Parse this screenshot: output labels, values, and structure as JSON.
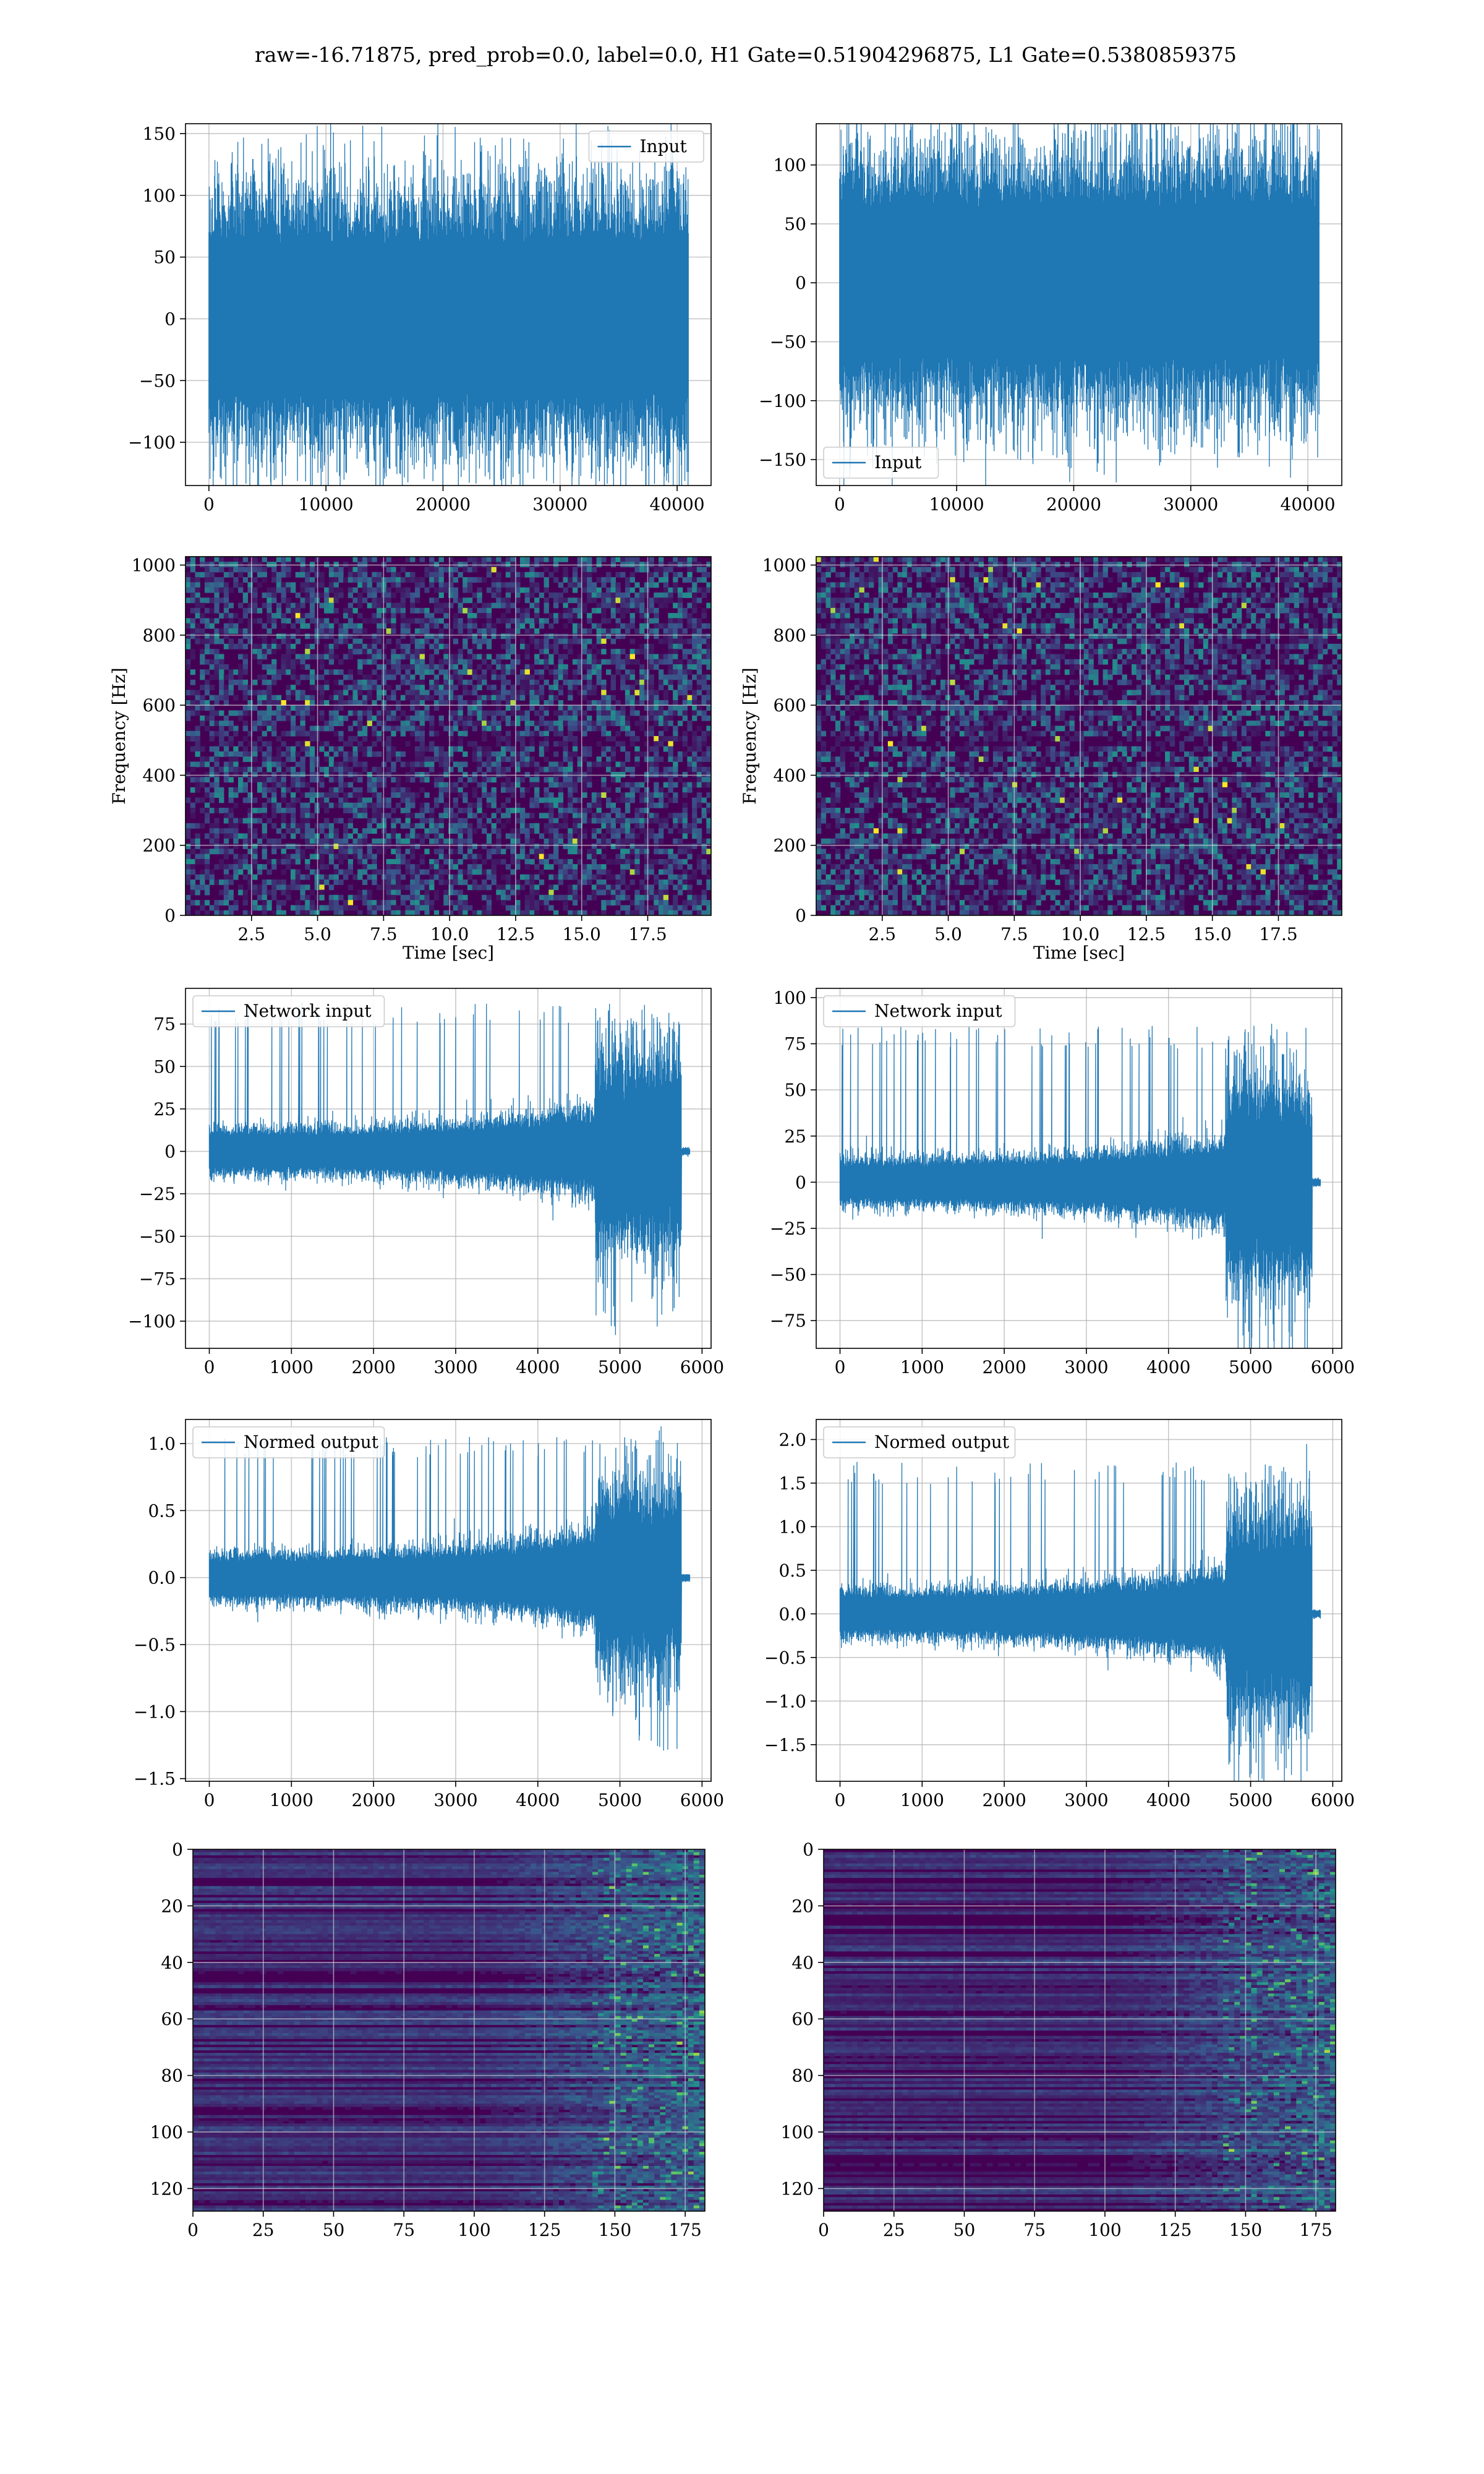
{
  "figure": {
    "suptitle": "raw=-16.71875, pred_prob=0.0, label=0.0, H1 Gate=0.51904296875, L1 Gate=0.5380859375"
  },
  "colors": {
    "line": "#1f77b4",
    "grid": "#b0b0b0",
    "viridis_low": "#440154",
    "viridis_high": "#fde725"
  },
  "chart_data": [
    {
      "id": "h1-input",
      "type": "line",
      "legend": "Input",
      "legend_loc": "upper-right",
      "xlim": [
        -2000,
        42900
      ],
      "ylim": [
        -135,
        158
      ],
      "xticks": [
        0,
        10000,
        20000,
        30000,
        40000
      ],
      "yticks": [
        -100,
        -50,
        0,
        50,
        100,
        150
      ],
      "series": [
        {
          "name": "Input",
          "x_range": [
            0,
            40960
          ],
          "points": 40960,
          "envelope": [
            -125,
            148
          ],
          "shape": "stationary"
        }
      ]
    },
    {
      "id": "l1-input",
      "type": "line",
      "legend": "Input",
      "legend_loc": "lower-left",
      "xlim": [
        -2000,
        42900
      ],
      "ylim": [
        -172,
        135
      ],
      "xticks": [
        0,
        10000,
        20000,
        30000,
        40000
      ],
      "yticks": [
        -150,
        -100,
        -50,
        0,
        50,
        100
      ],
      "series": [
        {
          "name": "Input",
          "x_range": [
            0,
            40960
          ],
          "points": 40960,
          "envelope": [
            -158,
            127
          ],
          "shape": "stationary"
        }
      ]
    },
    {
      "id": "h1-spectrogram",
      "type": "heatmap",
      "xlabel": "Time [sec]",
      "ylabel": "Frequency [Hz]",
      "xlim": [
        0,
        19.9
      ],
      "ylim": [
        0,
        1024
      ],
      "xticks": [
        2.5,
        5.0,
        7.5,
        10.0,
        12.5,
        15.0,
        17.5
      ],
      "xticklabels": [
        "2.5",
        "5.0",
        "7.5",
        "10.0",
        "12.5",
        "15.0",
        "17.5"
      ],
      "yticks": [
        0,
        200,
        400,
        600,
        800,
        1000
      ],
      "colormap": "viridis"
    },
    {
      "id": "l1-spectrogram",
      "type": "heatmap",
      "xlabel": "Time [sec]",
      "ylabel": "Frequency [Hz]",
      "xlim": [
        0,
        19.9
      ],
      "ylim": [
        0,
        1024
      ],
      "xticks": [
        2.5,
        5.0,
        7.5,
        10.0,
        12.5,
        15.0,
        17.5
      ],
      "xticklabels": [
        "2.5",
        "5.0",
        "7.5",
        "10.0",
        "12.5",
        "15.0",
        "17.5"
      ],
      "yticks": [
        0,
        200,
        400,
        600,
        800,
        1000
      ],
      "colormap": "viridis"
    },
    {
      "id": "h1-network-input",
      "type": "line",
      "legend": "Network input",
      "legend_loc": "upper-left",
      "xlim": [
        -290,
        6110
      ],
      "ylim": [
        -116,
        96
      ],
      "xticks": [
        0,
        1000,
        2000,
        3000,
        4000,
        5000,
        6000
      ],
      "yticks": [
        -100,
        -75,
        -50,
        -25,
        0,
        25,
        50,
        75
      ],
      "series": [
        {
          "name": "Network input",
          "x_range": [
            0,
            5850
          ],
          "points": 5850,
          "base_amplitude": 15,
          "burst_start": 4700,
          "burst_end": 5750,
          "burst_amplitude": 88,
          "shape": "chirp"
        }
      ]
    },
    {
      "id": "l1-network-input",
      "type": "line",
      "legend": "Network input",
      "legend_loc": "upper-left",
      "xlim": [
        -290,
        6110
      ],
      "ylim": [
        -90,
        105
      ],
      "xticks": [
        0,
        1000,
        2000,
        3000,
        4000,
        5000,
        6000
      ],
      "yticks": [
        -75,
        -50,
        -25,
        0,
        25,
        50,
        75,
        100
      ],
      "series": [
        {
          "name": "Network input",
          "x_range": [
            0,
            5850
          ],
          "points": 5850,
          "base_amplitude": 14,
          "burst_start": 4700,
          "burst_end": 5750,
          "burst_amplitude": 85,
          "shape": "chirp"
        }
      ]
    },
    {
      "id": "h1-normed-output",
      "type": "line",
      "legend": "Normed output",
      "legend_loc": "upper-left",
      "xlim": [
        -290,
        6110
      ],
      "ylim": [
        -1.52,
        1.18
      ],
      "xticks": [
        0,
        1000,
        2000,
        3000,
        4000,
        5000,
        6000
      ],
      "yticks": [
        -1.5,
        -1.0,
        -0.5,
        0.0,
        0.5,
        1.0
      ],
      "yticklabels": [
        "−1.5",
        "−1.0",
        "−0.5",
        "0.0",
        "0.5",
        "1.0"
      ],
      "series": [
        {
          "name": "Normed output",
          "x_range": [
            0,
            5850
          ],
          "points": 5850,
          "base_amplitude": 0.2,
          "burst_start": 4700,
          "burst_end": 5750,
          "burst_amplitude": 1.05,
          "shape": "chirp"
        }
      ]
    },
    {
      "id": "l1-normed-output",
      "type": "line",
      "legend": "Normed output",
      "legend_loc": "upper-left",
      "xlim": [
        -290,
        6110
      ],
      "ylim": [
        -1.92,
        2.23
      ],
      "xticks": [
        0,
        1000,
        2000,
        3000,
        4000,
        5000,
        6000
      ],
      "yticks": [
        -1.5,
        -1.0,
        -0.5,
        0.0,
        0.5,
        1.0,
        1.5,
        2.0
      ],
      "yticklabels": [
        "−1.5",
        "−1.0",
        "−0.5",
        "0.0",
        "0.5",
        "1.0",
        "1.5",
        "2.0"
      ],
      "series": [
        {
          "name": "Normed output",
          "x_range": [
            0,
            5850
          ],
          "points": 5850,
          "base_amplitude": 0.3,
          "burst_start": 4700,
          "burst_end": 5750,
          "burst_amplitude": 1.75,
          "shape": "chirp"
        }
      ]
    },
    {
      "id": "h1-feature-map",
      "type": "heatmap",
      "xlim": [
        0,
        182
      ],
      "ylim": [
        128,
        0
      ],
      "xticks": [
        0,
        25,
        50,
        75,
        100,
        125,
        150,
        175
      ],
      "yticks": [
        0,
        20,
        40,
        60,
        80,
        100,
        120
      ],
      "colormap": "viridis"
    },
    {
      "id": "l1-feature-map",
      "type": "heatmap",
      "xlim": [
        0,
        182
      ],
      "ylim": [
        128,
        0
      ],
      "xticks": [
        0,
        25,
        50,
        75,
        100,
        125,
        150,
        175
      ],
      "yticks": [
        0,
        20,
        40,
        60,
        80,
        100,
        120
      ],
      "colormap": "viridis"
    }
  ]
}
